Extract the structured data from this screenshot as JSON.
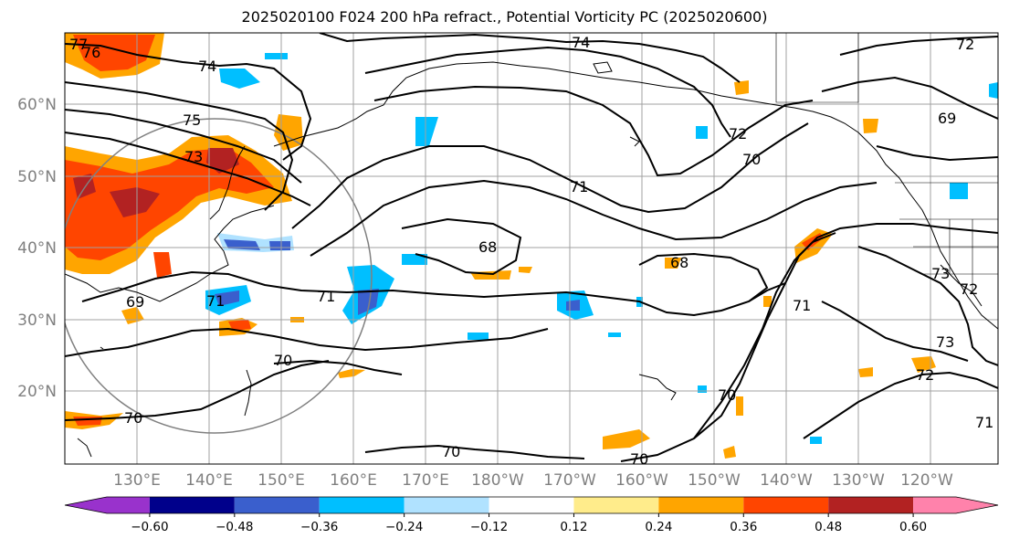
{
  "title": "2025020100 F024 200 hPa refract., Potential Vorticity PC (2025020600)",
  "lat_labels": [
    "60°N",
    "50°N",
    "40°N",
    "30°N",
    "20°N"
  ],
  "lon_labels": [
    "130°E",
    "140°E",
    "150°E",
    "160°E",
    "170°E",
    "180°W",
    "170°W",
    "160°W",
    "150°W",
    "140°W",
    "130°W",
    "120°W"
  ],
  "contour_labels": [
    "77",
    "76",
    "74",
    "75",
    "73",
    "74",
    "72",
    "72",
    "70",
    "71",
    "69",
    "68",
    "68",
    "71",
    "69",
    "70",
    "70",
    "70",
    "70",
    "71",
    "73",
    "72",
    "71",
    "73",
    "72",
    "71",
    "70"
  ],
  "colorbar": {
    "ticks": [
      "−0.60",
      "−0.48",
      "−0.36",
      "−0.24",
      "−0.12",
      "0.12",
      "0.24",
      "0.36",
      "0.48",
      "0.60"
    ],
    "colors": [
      "#9932cc",
      "#00008b",
      "#3a5fcd",
      "#00bfff",
      "#b0e2ff",
      "#ffffff",
      "#ffec8b",
      "#ffa500",
      "#ff4500",
      "#b22222",
      "#ff82ab"
    ]
  }
}
